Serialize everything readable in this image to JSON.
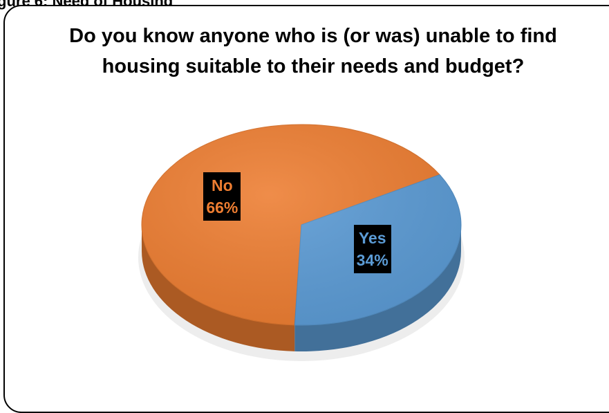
{
  "page": {
    "caption": "gure 6: Need of Housing"
  },
  "chart_data": {
    "type": "pie",
    "title": "Do you know anyone who is (or was) unable to find housing suitable to their needs and budget?",
    "slices": [
      {
        "label": "No",
        "value": 66,
        "percent_label": "66%",
        "color": "#ED7D31"
      },
      {
        "label": "Yes",
        "value": 34,
        "percent_label": "34%",
        "color": "#5B9BD5"
      }
    ]
  }
}
